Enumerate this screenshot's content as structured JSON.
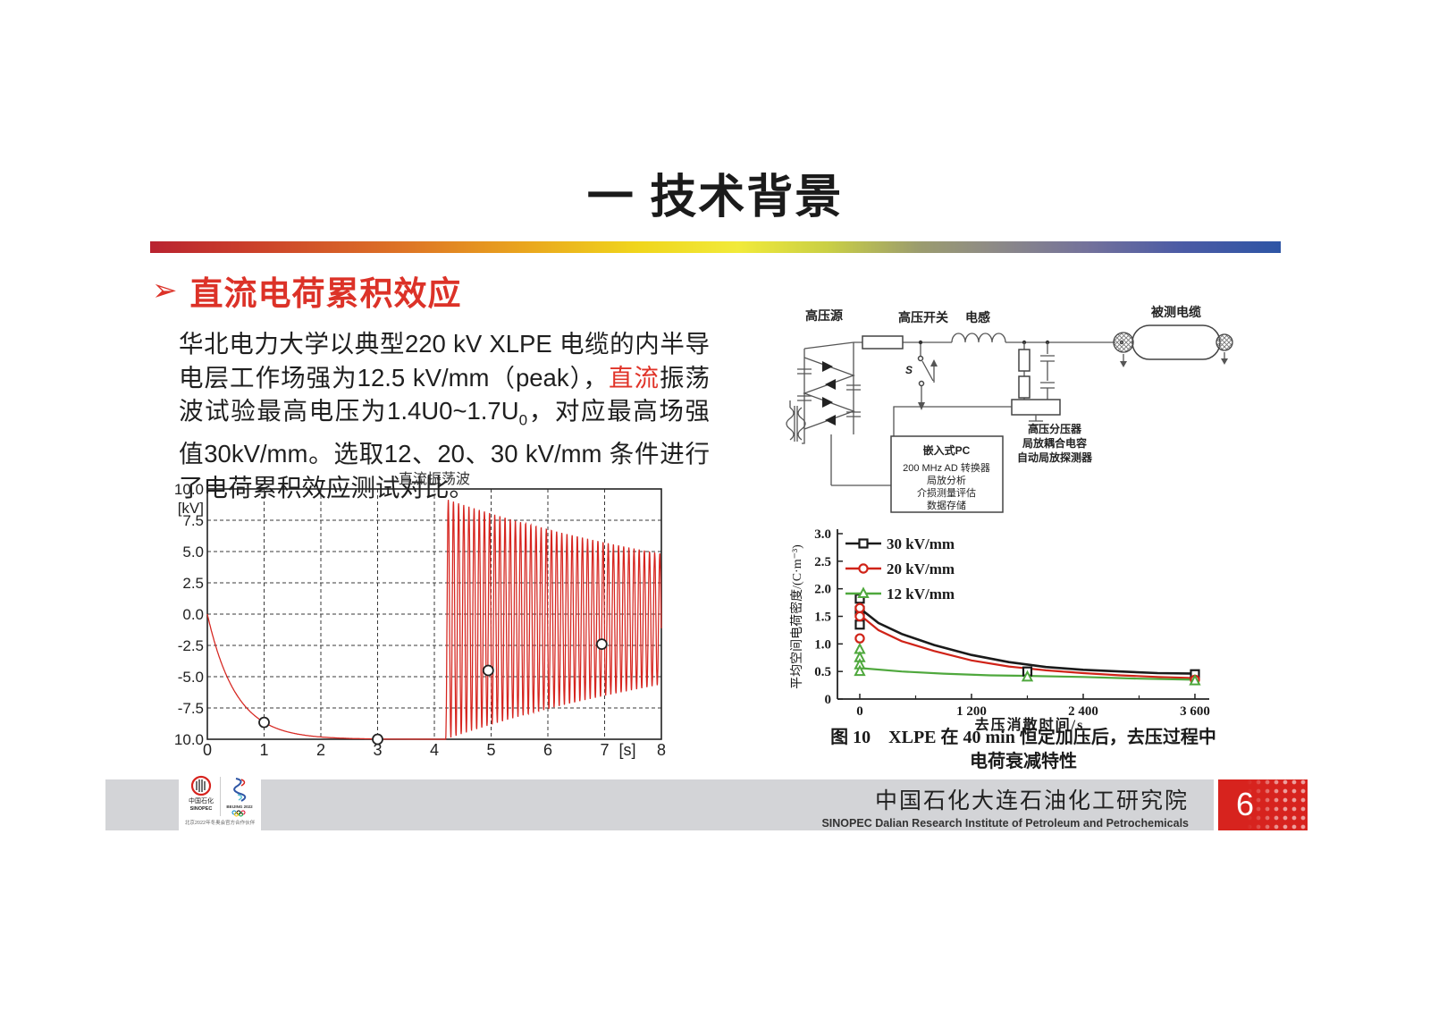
{
  "slide": {
    "title": "一  技术背景",
    "page_number": "6"
  },
  "heading": {
    "bullet_glyph": "➢",
    "label": "直流电荷累积效应"
  },
  "paragraph": {
    "segments": [
      {
        "t": "华北电力大学以典型220 kV XLPE 电缆的内半导电层工作场强为12.5 kV/mm（peak），",
        "s": "n"
      },
      {
        "t": "直流",
        "s": "red"
      },
      {
        "t": "振荡波试验最高电压为1.4U0~1.7U",
        "s": "n"
      },
      {
        "t": "0",
        "s": "sub"
      },
      {
        "t": "，对应最高场强值30kV/mm。选取12、20、30 kV/mm 条件进行了电荷累积效应测试对比。",
        "s": "n"
      }
    ]
  },
  "circuit": {
    "labels": {
      "source": "高压源",
      "hv_switch": "高压开关",
      "switch_s": "S",
      "inductor": "电感",
      "cable": "被测电缆",
      "pc_title": "嵌入式PC",
      "pc_lines": [
        "200 MHz AD 转换器",
        "局放分析",
        "介损测量评估",
        "数据存储"
      ],
      "divider_lines": [
        "高压分压器",
        "局放耦合电容",
        "自动局放探测器"
      ]
    }
  },
  "chart_data": [
    {
      "type": "line",
      "title": "直流振荡波",
      "ylabel": "[kV]",
      "xlabel": "[s]",
      "xlim": [
        0,
        8
      ],
      "ylim": [
        -10,
        10
      ],
      "grid": true,
      "yticks": [
        10.0,
        7.5,
        5.0,
        2.5,
        0.0,
        -2.5,
        -5.0,
        -7.5,
        -10.0
      ],
      "xticks": [
        0,
        1,
        2,
        3,
        4,
        5,
        6,
        7,
        8
      ],
      "series_color": "#d6251f",
      "decay": {
        "from": 0,
        "to": 3.0,
        "tau": 0.5,
        "level": -10
      },
      "flat": {
        "from": 3.0,
        "to": 4.2,
        "level": -10
      },
      "oscillation": {
        "from": 4.2,
        "to": 8.0,
        "mid": -0.4,
        "amplitude": 9.6,
        "decay_rate": 0.16,
        "freq_hz": 11
      },
      "markers": [
        [
          1,
          -8.65
        ],
        [
          3,
          -10
        ],
        [
          4.95,
          -4.5
        ],
        [
          6.95,
          -2.4
        ]
      ]
    },
    {
      "type": "scatter",
      "ylabel": "平均空间电荷密度/(C·m⁻³)",
      "xlabel": "去压消散时间/s",
      "xlim": [
        -240,
        3725
      ],
      "ylim": [
        0,
        3.0
      ],
      "yticks": [
        0,
        0.5,
        1.0,
        1.5,
        2.0,
        2.5,
        3.0
      ],
      "ytick_labels": [
        "0",
        "0.5",
        "1.0",
        "1.5",
        "2.0",
        "2.5",
        "3.0"
      ],
      "xticks": [
        0,
        1200,
        2400,
        3600
      ],
      "xtick_labels": [
        "0",
        "1 200",
        "2 400",
        "3 600"
      ],
      "minor_xticks": [
        600,
        1800,
        3000
      ],
      "legend_position": "top-left",
      "series": [
        {
          "name": "30 kV/mm",
          "color": "#1a1a1a",
          "marker": "square",
          "points": [
            [
              0,
              1.82
            ],
            [
              0,
              1.6
            ],
            [
              0,
              1.35
            ],
            [
              1800,
              0.5
            ],
            [
              3600,
              0.45
            ]
          ],
          "curve": [
            [
              20,
              1.62
            ],
            [
              200,
              1.38
            ],
            [
              450,
              1.18
            ],
            [
              800,
              0.98
            ],
            [
              1200,
              0.8
            ],
            [
              1600,
              0.67
            ],
            [
              2000,
              0.58
            ],
            [
              2400,
              0.53
            ],
            [
              2800,
              0.5
            ],
            [
              3200,
              0.47
            ],
            [
              3600,
              0.46
            ]
          ]
        },
        {
          "name": "20 kV/mm",
          "color": "#d02318",
          "marker": "circle",
          "points": [
            [
              0,
              1.65
            ],
            [
              0,
              1.5
            ],
            [
              0,
              1.1
            ],
            [
              3600,
              0.35
            ]
          ],
          "curve": [
            [
              20,
              1.5
            ],
            [
              200,
              1.25
            ],
            [
              450,
              1.05
            ],
            [
              800,
              0.87
            ],
            [
              1200,
              0.7
            ],
            [
              1600,
              0.59
            ],
            [
              2000,
              0.52
            ],
            [
              2400,
              0.47
            ],
            [
              2800,
              0.43
            ],
            [
              3200,
              0.4
            ],
            [
              3600,
              0.38
            ]
          ]
        },
        {
          "name": "12 kV/mm",
          "color": "#4fa83d",
          "marker": "triangle",
          "points": [
            [
              0,
              0.9
            ],
            [
              0,
              0.75
            ],
            [
              0,
              0.62
            ],
            [
              0,
              0.5
            ],
            [
              1800,
              0.4
            ],
            [
              3600,
              0.33
            ]
          ],
          "curve": [
            [
              20,
              0.56
            ],
            [
              450,
              0.5
            ],
            [
              900,
              0.46
            ],
            [
              1400,
              0.43
            ],
            [
              1800,
              0.42
            ],
            [
              2400,
              0.4
            ],
            [
              3000,
              0.37
            ],
            [
              3600,
              0.35
            ]
          ]
        }
      ],
      "caption_line1": "图 10　XLPE 在 40 min 恒定加压后，去压过程中",
      "caption_line2": "电荷衰减特性"
    }
  ],
  "footer": {
    "org_cn": "中国石化大连石油化工研究院",
    "org_en": "SINOPEC Dalian Research Institute of Petroleum and Petrochemicals",
    "logo1_cn": "中国石化",
    "logo1_en": "SINOPEC",
    "logo2_text": "BEIJING 2022",
    "partner_text": "北京2022年冬奥会官方合作伙伴"
  },
  "colors": {
    "heading_red": "#dc3228",
    "chart_red": "#d6251f",
    "legend_green": "#4fa83d",
    "legend_red": "#d02318",
    "footer_gray": "#d3d4d7",
    "page_box_red": "#d7231e",
    "gradient_start": "#b92330",
    "gradient_yellow": "#f0d51c",
    "gradient_end": "#2e55a5"
  }
}
